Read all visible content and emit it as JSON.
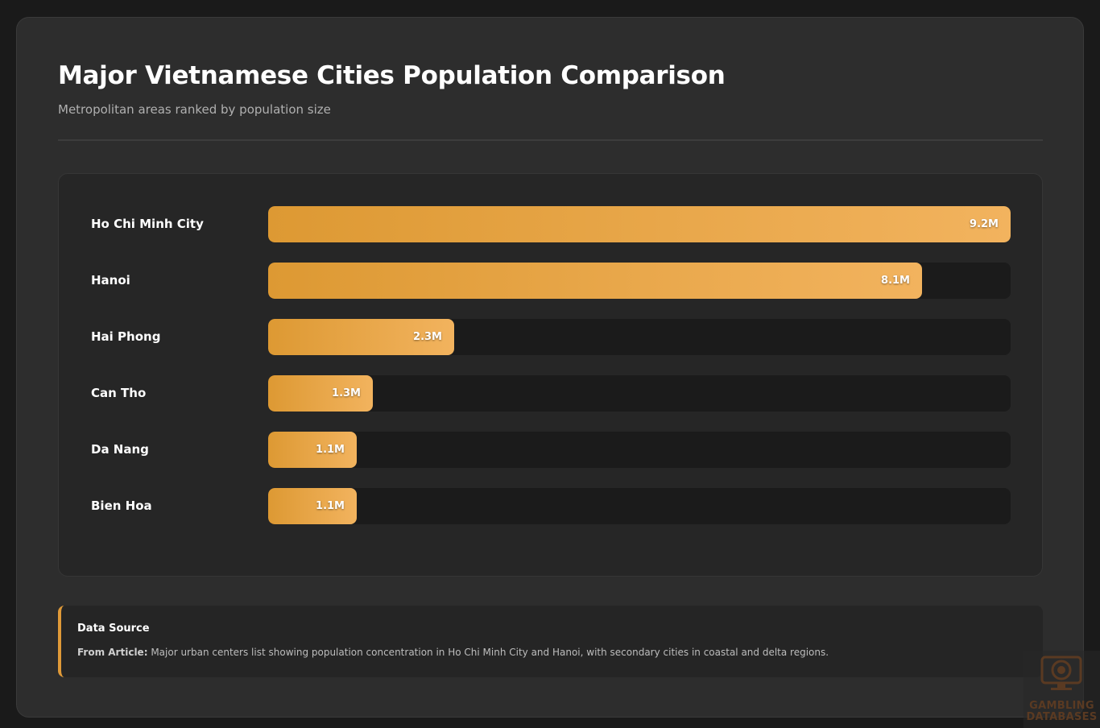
{
  "header": {
    "title": "Major Vietnamese Cities Population Comparison",
    "subtitle": "Metropolitan areas ranked by population size"
  },
  "chart_data": {
    "type": "bar",
    "orientation": "horizontal",
    "title": "Major Vietnamese Cities Population Comparison",
    "subtitle": "Metropolitan areas ranked by population size",
    "categories": [
      "Ho Chi Minh City",
      "Hanoi",
      "Hai Phong",
      "Can Tho",
      "Da Nang",
      "Bien Hoa"
    ],
    "values": [
      9.2,
      8.1,
      2.3,
      1.3,
      1.1,
      1.1
    ],
    "value_labels": [
      "9.2M",
      "8.1M",
      "2.3M",
      "1.3M",
      "1.1M",
      "1.1M"
    ],
    "xlim": [
      0,
      9.2
    ],
    "grid": false,
    "bar_color": "#dd9933",
    "bar_color_end": "#f2b35e",
    "track_color": "#1b1b1b"
  },
  "source": {
    "title": "Data Source",
    "prefix": "From Article:",
    "text": " Major urban centers list showing population concentration in Ho Chi Minh City and Hanoi, with secondary cities in coastal and delta regions."
  },
  "watermark": {
    "line1": "GAMBLING",
    "line2": "DATABASES",
    "icon": "monitor-poker-chip-icon"
  },
  "colors": {
    "background": "#1a1a1a",
    "card": "#2d2d2d",
    "accent": "#e09a38"
  }
}
